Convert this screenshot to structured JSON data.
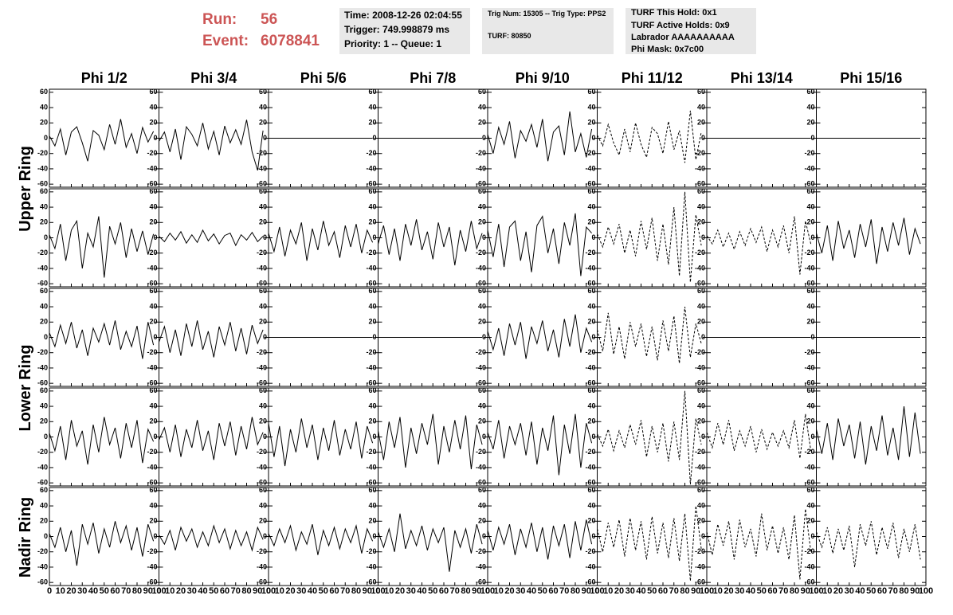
{
  "header": {
    "run_label": "Run:",
    "run": "56",
    "event_label": "Event:",
    "event": "6078841"
  },
  "info": [
    [
      "Time: 2008-12-26 02:04:55",
      "Trigger: 749.998879 ms",
      "Priority: 1 -- Queue: 1"
    ],
    [
      "Trig Num: 15305 -- Trig Type: PPS2",
      "TURF: 80850"
    ],
    [
      "TURF This Hold: 0x1",
      "TURF Active Holds: 0x9",
      "Labrador AAAAAAAAAA",
      "Phi Mask: 0x7c00"
    ]
  ],
  "chart_data": {
    "type": "line",
    "color": "#000000",
    "columns": [
      "Phi 1/2",
      "Phi 3/4",
      "Phi 5/6",
      "Phi 7/8",
      "Phi 9/10",
      "Phi 11/12",
      "Phi 13/14",
      "Phi 15/16"
    ],
    "ring_labels": [
      "Upper Ring",
      "Lower Ring",
      "Nadir Ring"
    ],
    "xlim": [
      0,
      100
    ],
    "xticks": [
      0,
      10,
      20,
      30,
      40,
      50,
      60,
      70,
      80,
      90,
      100
    ],
    "ylim": [
      -64,
      64
    ],
    "yticks": [
      -60,
      -40,
      -20,
      0,
      20,
      40,
      60
    ],
    "x": [
      0,
      5,
      10,
      15,
      20,
      25,
      30,
      35,
      40,
      45,
      50,
      55,
      60,
      65,
      70,
      75,
      80,
      85,
      90,
      95
    ],
    "rows": [
      [
        {
          "dashed": false,
          "values": [
            3,
            -10,
            12,
            -22,
            8,
            15,
            -6,
            -30,
            10,
            4,
            -15,
            18,
            -8,
            25,
            -12,
            6,
            -20,
            14,
            -5,
            9
          ]
        },
        {
          "dashed": false,
          "values": [
            -4,
            8,
            -18,
            12,
            -28,
            15,
            5,
            -10,
            20,
            -14,
            9,
            -22,
            16,
            -6,
            11,
            -8,
            24,
            -18,
            -42,
            10
          ]
        },
        {
          "dashed": false,
          "values": [
            0,
            0,
            0,
            0,
            0,
            0,
            0,
            0,
            0,
            0,
            0,
            0,
            0,
            0,
            0,
            0,
            0,
            0,
            0,
            0
          ]
        },
        {
          "dashed": false,
          "values": [
            0,
            0,
            0,
            0,
            0,
            0,
            0,
            0,
            0,
            0,
            0,
            0,
            0,
            0,
            0,
            0,
            0,
            0,
            0,
            0
          ]
        },
        {
          "dashed": false,
          "values": [
            5,
            -20,
            14,
            -8,
            22,
            -26,
            10,
            -4,
            18,
            -12,
            25,
            -30,
            8,
            16,
            -22,
            35,
            -18,
            6,
            -25,
            12
          ]
        },
        {
          "dashed": true,
          "values": [
            4,
            -10,
            18,
            -6,
            -22,
            12,
            -18,
            20,
            -8,
            -25,
            14,
            6,
            -20,
            22,
            -15,
            10,
            -32,
            36,
            -28,
            8
          ]
        },
        {
          "dashed": false,
          "values": [
            0,
            0,
            0,
            0,
            0,
            0,
            0,
            0,
            0,
            0,
            0,
            0,
            0,
            0,
            0,
            0,
            0,
            0,
            0,
            0
          ]
        },
        {
          "dashed": false,
          "values": [
            0,
            0,
            0,
            0,
            0,
            0,
            0,
            0,
            0,
            0,
            0,
            0,
            0,
            0,
            0,
            0,
            0,
            0,
            0,
            0
          ]
        }
      ],
      [
        {
          "dashed": false,
          "values": [
            4,
            -14,
            18,
            -30,
            10,
            22,
            -40,
            6,
            -12,
            28,
            -52,
            15,
            -8,
            20,
            -26,
            12,
            -18,
            9,
            -22,
            5
          ]
        },
        {
          "dashed": false,
          "values": [
            2,
            -5,
            6,
            -3,
            8,
            -7,
            4,
            -6,
            10,
            -4,
            5,
            -8,
            3,
            6,
            -10,
            4,
            -3,
            7,
            -5,
            2
          ]
        },
        {
          "dashed": false,
          "values": [
            6,
            -18,
            14,
            -24,
            10,
            -8,
            20,
            -30,
            12,
            -16,
            22,
            -10,
            8,
            -26,
            16,
            -12,
            18,
            -20,
            10,
            -6
          ]
        },
        {
          "dashed": false,
          "values": [
            -8,
            16,
            -22,
            12,
            -30,
            18,
            -10,
            24,
            -16,
            8,
            -28,
            20,
            -12,
            14,
            -36,
            10,
            -18,
            22,
            -14,
            6
          ]
        },
        {
          "dashed": false,
          "values": [
            10,
            -25,
            18,
            -38,
            14,
            22,
            -30,
            8,
            -45,
            16,
            28,
            -20,
            12,
            -34,
            20,
            -10,
            32,
            -50,
            14,
            6
          ]
        },
        {
          "dashed": true,
          "values": [
            5,
            -12,
            14,
            -8,
            18,
            -20,
            10,
            -24,
            22,
            -15,
            26,
            -30,
            18,
            -35,
            40,
            -50,
            60,
            -58,
            30,
            -10
          ]
        },
        {
          "dashed": true,
          "values": [
            3,
            -8,
            10,
            -12,
            6,
            -15,
            8,
            -10,
            12,
            -6,
            14,
            -18,
            10,
            -12,
            16,
            -20,
            28,
            -48,
            22,
            -8
          ]
        },
        {
          "dashed": false,
          "values": [
            6,
            -20,
            16,
            -30,
            22,
            -14,
            10,
            -26,
            18,
            -12,
            24,
            -34,
            14,
            -18,
            20,
            -10,
            26,
            -22,
            12,
            -8
          ]
        }
      ],
      [
        {
          "dashed": false,
          "values": [
            6,
            -12,
            16,
            -8,
            20,
            -14,
            10,
            -24,
            12,
            -6,
            18,
            -10,
            22,
            -16,
            8,
            -12,
            15,
            -28,
            20,
            -10
          ]
        },
        {
          "dashed": false,
          "values": [
            -6,
            14,
            -20,
            10,
            -24,
            18,
            -12,
            22,
            -16,
            8,
            -26,
            14,
            -10,
            20,
            -18,
            12,
            -22,
            16,
            -8,
            10
          ]
        },
        {
          "dashed": false,
          "values": [
            0,
            0,
            0,
            0,
            0,
            0,
            0,
            0,
            0,
            0,
            0,
            0,
            0,
            0,
            0,
            0,
            0,
            0,
            0,
            0
          ]
        },
        {
          "dashed": false,
          "values": [
            0,
            0,
            0,
            0,
            0,
            0,
            0,
            0,
            0,
            0,
            0,
            0,
            0,
            0,
            0,
            0,
            0,
            0,
            0,
            0
          ]
        },
        {
          "dashed": false,
          "values": [
            8,
            -16,
            12,
            -24,
            18,
            -10,
            20,
            -28,
            14,
            -8,
            22,
            -18,
            10,
            -26,
            24,
            -12,
            30,
            -20,
            12,
            -6
          ]
        },
        {
          "dashed": true,
          "values": [
            10,
            -18,
            32,
            -22,
            14,
            -28,
            20,
            -12,
            18,
            -25,
            14,
            -30,
            22,
            -18,
            28,
            -34,
            40,
            -26,
            18,
            -8
          ]
        },
        {
          "dashed": false,
          "values": [
            0,
            0,
            0,
            0,
            0,
            0,
            0,
            0,
            0,
            0,
            0,
            0,
            0,
            0,
            0,
            0,
            0,
            0,
            0,
            0
          ]
        },
        {
          "dashed": false,
          "values": [
            0,
            0,
            0,
            0,
            0,
            0,
            0,
            0,
            0,
            0,
            0,
            0,
            0,
            0,
            0,
            0,
            0,
            0,
            0,
            0
          ]
        }
      ],
      [
        {
          "dashed": false,
          "values": [
            5,
            -18,
            14,
            -30,
            22,
            -12,
            8,
            -36,
            16,
            -20,
            26,
            -10,
            12,
            -28,
            18,
            -14,
            22,
            -34,
            10,
            -6
          ]
        },
        {
          "dashed": false,
          "values": [
            -4,
            12,
            -20,
            16,
            -26,
            10,
            -14,
            22,
            -18,
            8,
            -30,
            18,
            -12,
            20,
            -24,
            14,
            -16,
            26,
            -10,
            6
          ]
        },
        {
          "dashed": false,
          "values": [
            18,
            -26,
            14,
            -38,
            10,
            -20,
            24,
            -14,
            16,
            -30,
            12,
            -18,
            22,
            -24,
            10,
            -16,
            20,
            -28,
            14,
            -8
          ]
        },
        {
          "dashed": false,
          "values": [
            8,
            -30,
            20,
            -14,
            26,
            -40,
            12,
            -22,
            18,
            -10,
            30,
            -36,
            14,
            -20,
            22,
            -16,
            28,
            -42,
            16,
            -10
          ]
        },
        {
          "dashed": false,
          "values": [
            6,
            -16,
            22,
            -28,
            14,
            -10,
            18,
            -24,
            20,
            -36,
            12,
            -18,
            28,
            -50,
            16,
            -22,
            30,
            -40,
            18,
            -8
          ]
        },
        {
          "dashed": true,
          "values": [
            4,
            -12,
            10,
            -18,
            8,
            -14,
            16,
            -10,
            22,
            -26,
            14,
            -20,
            18,
            -32,
            20,
            -30,
            60,
            -62,
            24,
            -10
          ]
        },
        {
          "dashed": true,
          "values": [
            6,
            -14,
            18,
            -10,
            22,
            -18,
            8,
            -12,
            14,
            -20,
            10,
            -16,
            6,
            -12,
            8,
            -14,
            22,
            -28,
            30,
            -18
          ]
        },
        {
          "dashed": false,
          "values": [
            10,
            -22,
            18,
            -30,
            24,
            -12,
            16,
            -28,
            20,
            -36,
            14,
            -18,
            28,
            -24,
            12,
            -30,
            40,
            -26,
            32,
            -22
          ]
        }
      ],
      [
        {
          "dashed": false,
          "values": [
            4,
            -14,
            12,
            -20,
            8,
            -38,
            16,
            -10,
            18,
            -22,
            10,
            -14,
            20,
            -8,
            14,
            -18,
            12,
            -26,
            16,
            -6
          ]
        },
        {
          "dashed": false,
          "values": [
            2,
            -10,
            8,
            -18,
            12,
            -6,
            10,
            -14,
            6,
            -12,
            14,
            -8,
            10,
            -16,
            8,
            -12,
            6,
            -18,
            12,
            -4
          ]
        },
        {
          "dashed": false,
          "values": [
            4,
            -12,
            10,
            -8,
            14,
            -18,
            6,
            -10,
            16,
            -24,
            8,
            -12,
            12,
            -16,
            10,
            -8,
            14,
            -22,
            10,
            -6
          ]
        },
        {
          "dashed": false,
          "values": [
            6,
            -14,
            10,
            -20,
            30,
            -16,
            8,
            -12,
            14,
            -18,
            10,
            -8,
            12,
            -46,
            8,
            -14,
            10,
            -22,
            16,
            -10
          ]
        },
        {
          "dashed": false,
          "values": [
            8,
            -18,
            12,
            -10,
            16,
            -24,
            10,
            -14,
            18,
            -20,
            12,
            -30,
            14,
            -12,
            16,
            -28,
            20,
            -18,
            22,
            -10
          ]
        },
        {
          "dashed": true,
          "values": [
            10,
            -20,
            18,
            -14,
            22,
            -26,
            24,
            -18,
            20,
            -30,
            26,
            -22,
            18,
            -28,
            24,
            -32,
            30,
            -58,
            40,
            -16
          ]
        },
        {
          "dashed": true,
          "values": [
            6,
            -24,
            16,
            -12,
            20,
            -30,
            22,
            -14,
            10,
            -26,
            30,
            -18,
            14,
            -22,
            12,
            -30,
            28,
            -56,
            36,
            -20
          ]
        },
        {
          "dashed": true,
          "values": [
            6,
            -14,
            12,
            -22,
            10,
            -18,
            14,
            -40,
            16,
            -12,
            20,
            -24,
            12,
            -16,
            18,
            -28,
            10,
            -20,
            16,
            -30
          ]
        }
      ]
    ]
  }
}
